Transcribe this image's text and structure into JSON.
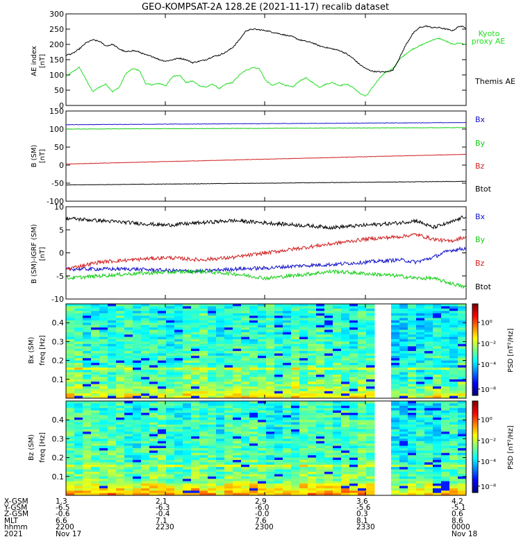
{
  "title": "GEO-KOMPSAT-2A 128.2E (2021-11-17) recalib dataset",
  "colors": {
    "black": "#000000",
    "red": "#d11f1f",
    "green": "#11cc11",
    "blue": "#1010c8",
    "kyoto_green": "#22dd22"
  },
  "chart_data": [
    {
      "type": "line",
      "ylabel": "AE index [nT]",
      "ylim": [
        0,
        300
      ],
      "yticks": [
        0,
        50,
        100,
        150,
        200,
        250,
        300
      ],
      "xlim": [
        0,
        120
      ],
      "grid": false,
      "legend": "right",
      "series": [
        {
          "name": "Kyoto proxy AE",
          "color": "#22dd22",
          "x": [
            0,
            2,
            4,
            6,
            8,
            10,
            12,
            14,
            16,
            18,
            20,
            22,
            24,
            26,
            28,
            30,
            32,
            34,
            36,
            38,
            40,
            42,
            44,
            46,
            48,
            50,
            52,
            54,
            56,
            58,
            60,
            62,
            64,
            66,
            68,
            70,
            72,
            74,
            76,
            78,
            80,
            82,
            84,
            86,
            88,
            90,
            92,
            94,
            96,
            98,
            100,
            102,
            104,
            106,
            108,
            110,
            112,
            114,
            116,
            118,
            120
          ],
          "values": [
            95,
            110,
            125,
            85,
            45,
            60,
            70,
            45,
            60,
            105,
            120,
            115,
            70,
            68,
            72,
            65,
            95,
            100,
            75,
            80,
            65,
            60,
            70,
            55,
            70,
            75,
            100,
            115,
            125,
            120,
            80,
            65,
            75,
            65,
            60,
            80,
            90,
            75,
            60,
            70,
            75,
            65,
            70,
            60,
            40,
            30,
            60,
            90,
            110,
            120,
            150,
            170,
            185,
            195,
            205,
            215,
            220,
            210,
            200,
            205,
            200
          ]
        },
        {
          "name": "Themis AE",
          "color": "#000000",
          "x": [
            0,
            2,
            4,
            6,
            8,
            10,
            12,
            14,
            16,
            18,
            20,
            22,
            24,
            26,
            28,
            30,
            32,
            34,
            36,
            38,
            40,
            42,
            44,
            46,
            48,
            50,
            52,
            54,
            56,
            58,
            60,
            62,
            64,
            66,
            68,
            70,
            72,
            74,
            76,
            78,
            80,
            82,
            84,
            86,
            88,
            90,
            92,
            94,
            96,
            98,
            100,
            102,
            104,
            106,
            108,
            110,
            112,
            114,
            116,
            118,
            120
          ],
          "values": [
            165,
            170,
            185,
            205,
            215,
            210,
            195,
            200,
            185,
            175,
            180,
            175,
            165,
            160,
            150,
            145,
            150,
            155,
            150,
            140,
            145,
            150,
            160,
            165,
            175,
            190,
            215,
            245,
            250,
            248,
            245,
            240,
            235,
            230,
            225,
            215,
            210,
            205,
            195,
            190,
            185,
            180,
            170,
            155,
            135,
            120,
            112,
            110,
            110,
            115,
            155,
            200,
            235,
            255,
            260,
            255,
            255,
            250,
            245,
            260,
            255
          ]
        }
      ]
    },
    {
      "type": "line",
      "ylabel": "B (SM) [nT]",
      "ylim": [
        -100,
        150
      ],
      "yticks": [
        -100,
        -50,
        0,
        50,
        100,
        150
      ],
      "xlim": [
        0,
        120
      ],
      "grid": false,
      "legend": "right",
      "series": [
        {
          "name": "Bx",
          "color": "#1010c8",
          "x": [
            0,
            120
          ],
          "values": [
            112,
            118
          ]
        },
        {
          "name": "By",
          "color": "#11cc11",
          "x": [
            0,
            120
          ],
          "values": [
            100,
            104
          ]
        },
        {
          "name": "Bz",
          "color": "#d11f1f",
          "x": [
            0,
            120
          ],
          "values": [
            3,
            30
          ]
        },
        {
          "name": "Btot",
          "color": "#000000",
          "x": [
            0,
            120
          ],
          "values": [
            -55,
            -45
          ]
        }
      ]
    },
    {
      "type": "line",
      "ylabel": "B (SM)-IGRF (SM) [nT]",
      "ylim": [
        -10,
        10
      ],
      "yticks": [
        -10,
        -5,
        0,
        5,
        10
      ],
      "xlim": [
        0,
        120
      ],
      "grid": false,
      "legend": "right",
      "series": [
        {
          "name": "Bx",
          "color": "#1010c8",
          "x": [
            0,
            10,
            20,
            30,
            40,
            50,
            60,
            70,
            80,
            90,
            100,
            105,
            110,
            115,
            120
          ],
          "values": [
            -3.5,
            -3.5,
            -3.5,
            -3.8,
            -4.0,
            -3.5,
            -3.3,
            -2.8,
            -2.5,
            -2.0,
            -1.5,
            -2.0,
            -1.0,
            0.5,
            1.0
          ]
        },
        {
          "name": "By",
          "color": "#11cc11",
          "x": [
            0,
            10,
            20,
            30,
            40,
            50,
            60,
            70,
            80,
            90,
            100,
            105,
            110,
            115,
            120
          ],
          "values": [
            -5.5,
            -5.0,
            -4.5,
            -4.2,
            -4.0,
            -4.5,
            -5.5,
            -4.8,
            -4.0,
            -4.5,
            -5.0,
            -5.5,
            -5.5,
            -6.5,
            -7.5
          ]
        },
        {
          "name": "Bz",
          "color": "#d11f1f",
          "x": [
            0,
            10,
            20,
            30,
            40,
            50,
            60,
            70,
            80,
            90,
            100,
            105,
            110,
            115,
            120
          ],
          "values": [
            -3.5,
            -2.0,
            -1.5,
            -1.0,
            -1.5,
            -1.0,
            0.0,
            1.0,
            2.0,
            3.0,
            3.5,
            4.0,
            3.0,
            2.5,
            3.5
          ]
        },
        {
          "name": "Btot",
          "color": "#000000",
          "x": [
            0,
            10,
            20,
            30,
            40,
            50,
            60,
            70,
            80,
            90,
            100,
            105,
            110,
            115,
            120
          ],
          "values": [
            7.5,
            7.0,
            6.5,
            6.0,
            6.5,
            7.0,
            6.5,
            6.0,
            5.5,
            6.0,
            6.5,
            7.0,
            5.5,
            6.5,
            8.0
          ]
        }
      ]
    },
    {
      "type": "heatmap",
      "ylabel": "Bx (SM) freq [Hz]",
      "yticks": [
        0.1,
        0.2,
        0.3,
        0.4
      ],
      "ylim": [
        0,
        0.5
      ],
      "colorbar_label": "PSD [nT^2/Hz]",
      "colorbar_ticks": [
        "10^-8",
        "10^-4",
        "10^-2",
        "10^0"
      ]
    },
    {
      "type": "heatmap",
      "ylabel": "Bz (SM) freq [Hz]",
      "yticks": [
        0.1,
        0.2,
        0.3,
        0.4
      ],
      "ylim": [
        0,
        0.5
      ],
      "colorbar_label": "PSD [nT^2/Hz]",
      "colorbar_ticks": [
        "10^-8",
        "10^-4",
        "10^-2",
        "10^0"
      ]
    }
  ],
  "ae_legend": {
    "kyoto_line1": "Kyoto",
    "kyoto_line2": "proxy AE",
    "themis": "Themis AE"
  },
  "ylabels": {
    "ae_1": "AE index",
    "ae_2": "[nT]",
    "b_1": "B (SM)",
    "b_2": "[nT]",
    "bd_1": "B (SM)-IGRF (SM)",
    "bd_2": "[nT]",
    "sx_1": "Bx (SM)",
    "sx_2": "freq [Hz]",
    "sz_1": "Bz (SM)",
    "sz_2": "freq [Hz]",
    "psd": "PSD [nT²/Hz]"
  },
  "legend_b": [
    "Bx",
    "By",
    "Bz",
    "Btot"
  ],
  "heatmap_yticks": [
    "0.4",
    "0.3",
    "0.2",
    "0.1"
  ],
  "colorbar_ticks": [
    "10⁰",
    "10⁻²",
    "10⁻⁴",
    "10⁻⁸"
  ],
  "x_axis": {
    "row_labels": [
      "X-GSM",
      "Y-GSM",
      "Z-GSM",
      "MLT",
      "hhmm",
      "2021"
    ],
    "columns": [
      [
        "1.3",
        "-6.5",
        "-0.6",
        "6.6",
        "2200",
        "Nov 17"
      ],
      [
        "2.1",
        "-6.3",
        "-0.4",
        "7.1",
        "2230",
        ""
      ],
      [
        "2.9",
        "-6.0",
        "-0.0",
        "7.6",
        "2300",
        ""
      ],
      [
        "3.6",
        "-5.6",
        "0.3",
        "8.1",
        "2330",
        ""
      ],
      [
        "4.2",
        "-5.1",
        "0.6",
        "8.6",
        "0000",
        "Nov 18"
      ]
    ]
  }
}
